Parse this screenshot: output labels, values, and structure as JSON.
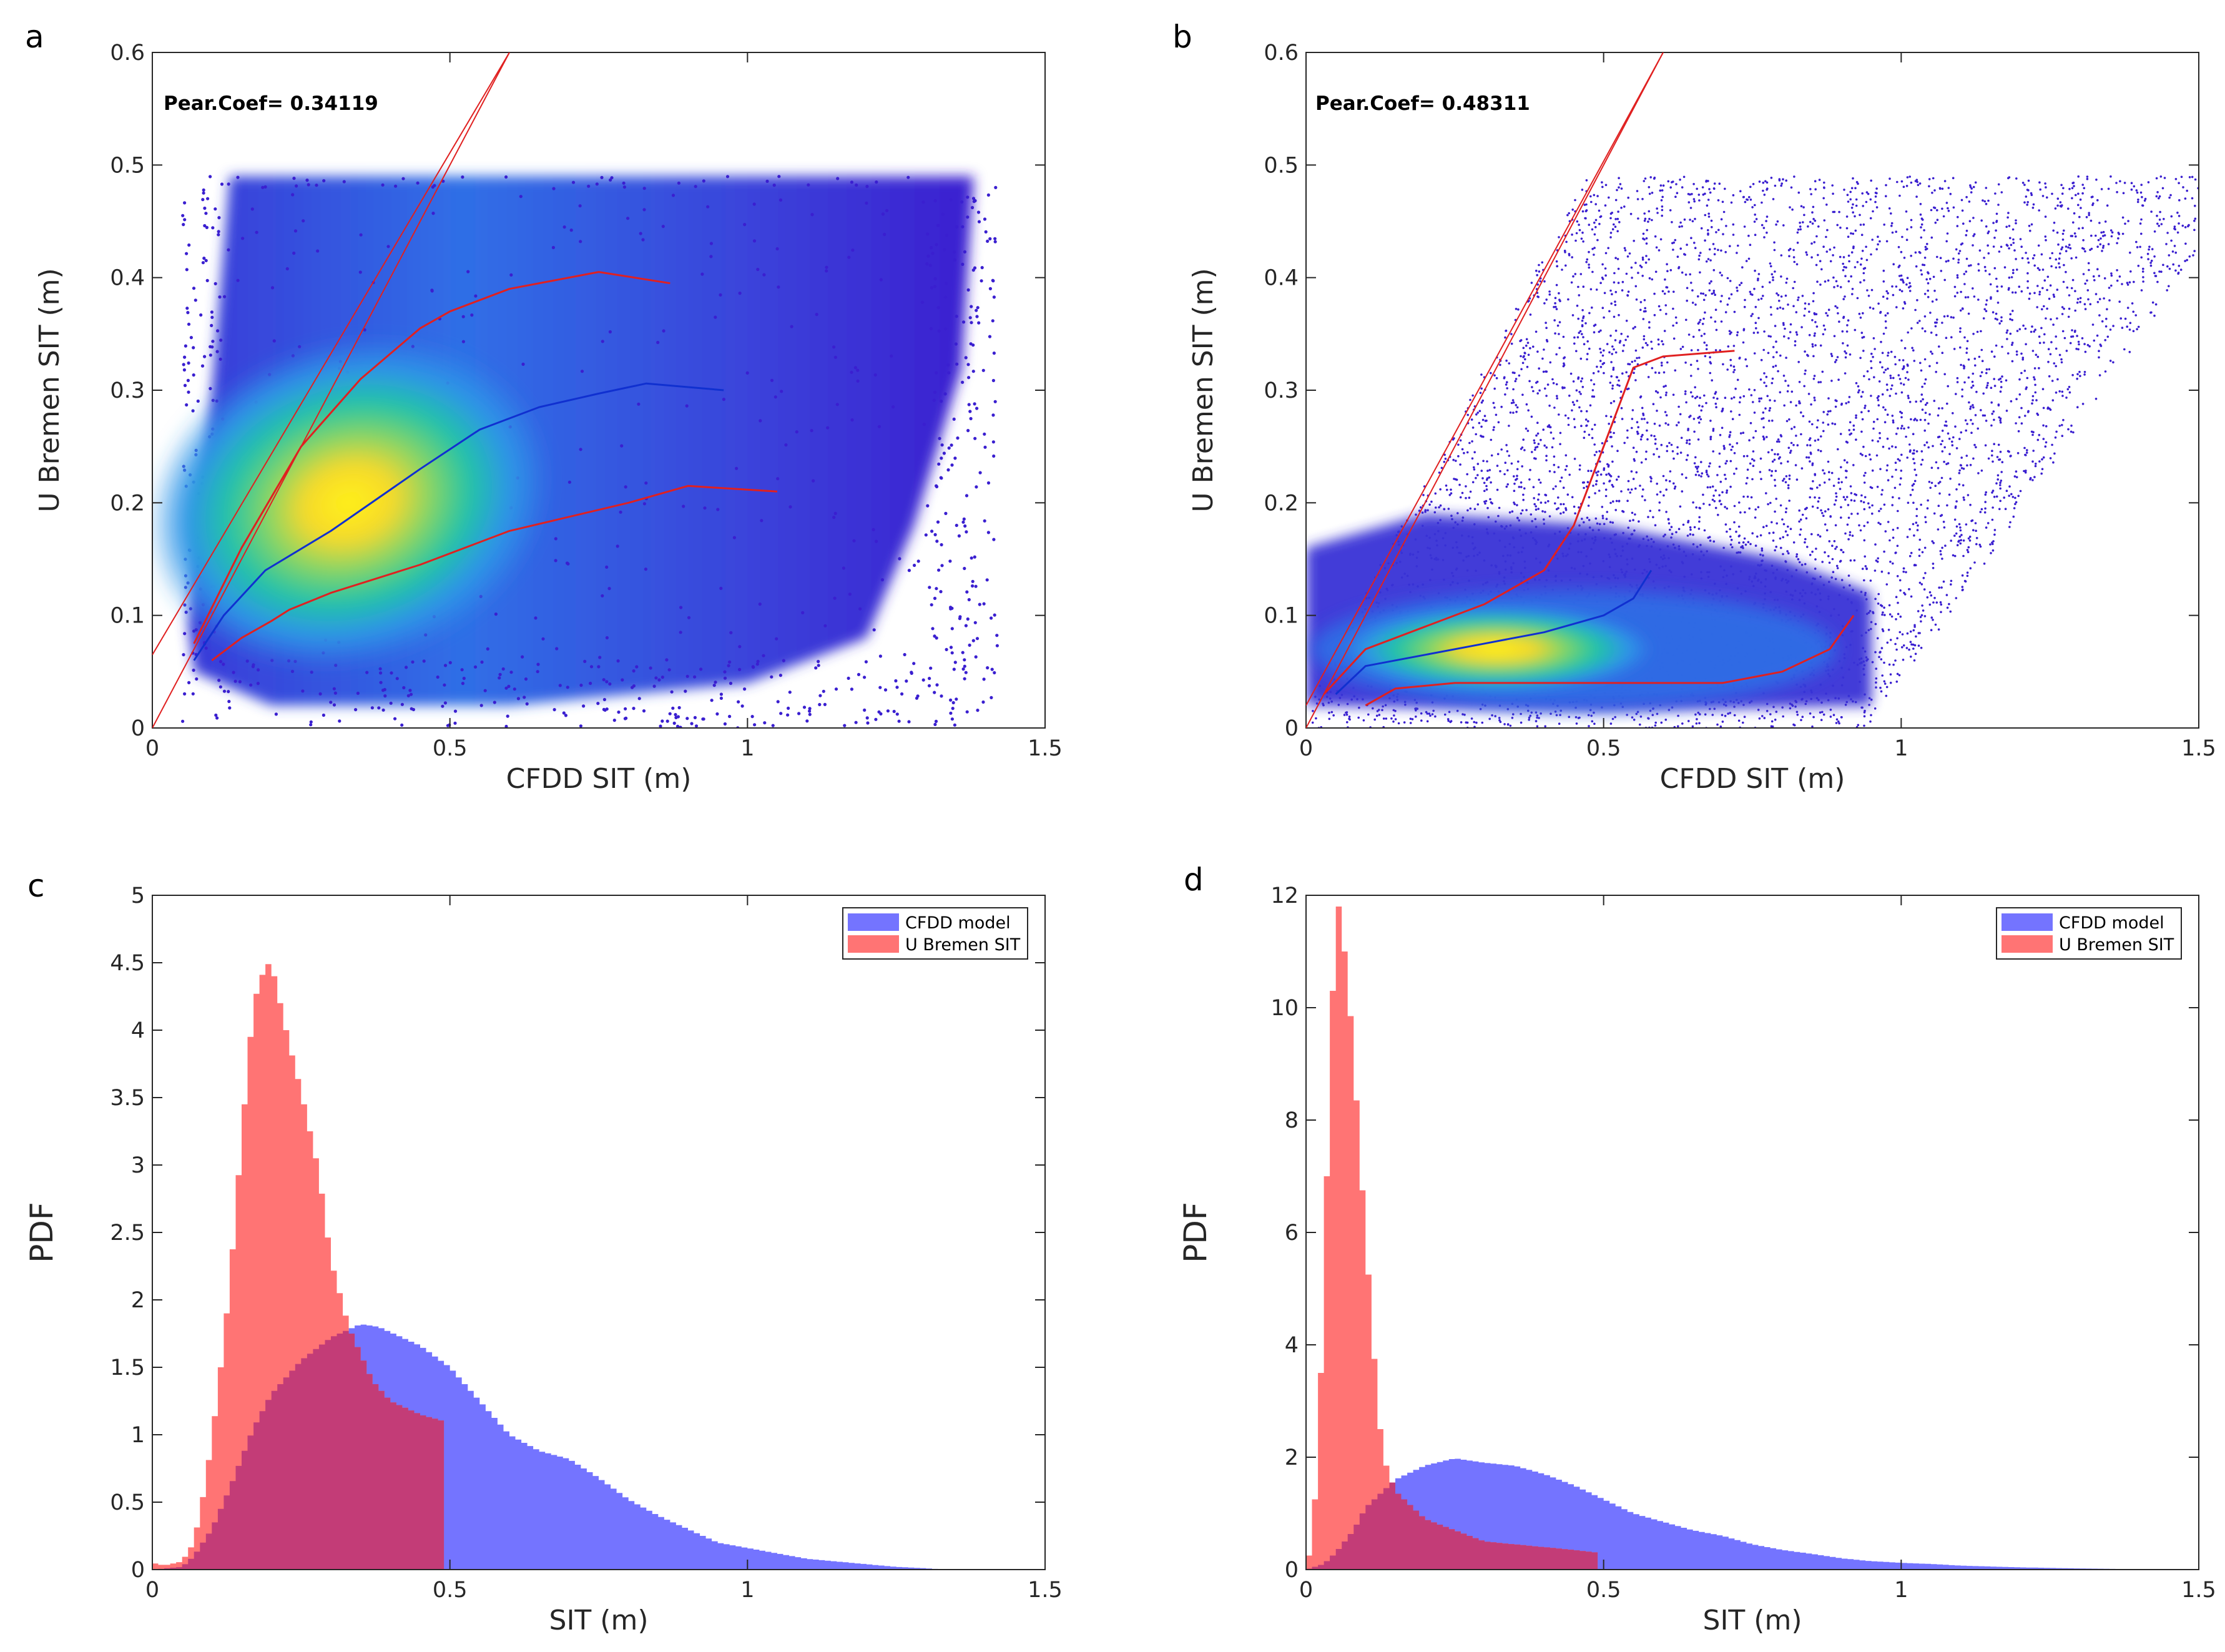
{
  "figure": {
    "colors": {
      "scatter_low": "#3a1fd0",
      "scatter_mid": "#2e95e8",
      "scatter_teal": "#22c3a8",
      "scatter_high": "#f3e51a",
      "fit_line": "#e02020",
      "mean_line": "#1030d0",
      "hist_blue": "#7474ff",
      "hist_red": "#ff7474",
      "overlap": "#c33c77",
      "axis": "#262626"
    }
  },
  "chart_data": [
    {
      "id": "a",
      "panel_label": "a",
      "type": "scatter",
      "title": "",
      "xlabel": "CFDD SIT (m)",
      "ylabel": "U Bremen SIT (m)",
      "xlim": [
        0,
        1.5
      ],
      "ylim": [
        0,
        0.6
      ],
      "xticks": [
        0,
        0.5,
        1,
        1.5
      ],
      "xtick_labels": [
        "0",
        "0.5",
        "1",
        "1.5"
      ],
      "yticks": [
        0,
        0.1,
        0.2,
        0.3,
        0.4,
        0.5,
        0.6
      ],
      "ytick_labels": [
        "0",
        "0.1",
        "0.2",
        "0.3",
        "0.4",
        "0.5",
        "0.6"
      ],
      "annotation": "Pear.Coef= 0.34119",
      "density_peak": {
        "x": 0.33,
        "y": 0.19
      },
      "point_cloud": {
        "x_range": [
          0.05,
          1.4
        ],
        "y_range": [
          0.0,
          0.49
        ],
        "saturation_y": 0.49
      },
      "one_to_one_line": {
        "x": [
          0,
          0.6
        ],
        "y": [
          0,
          0.6
        ]
      },
      "fit_line": {
        "x": [
          0,
          0.6
        ],
        "y": [
          0.065,
          0.6
        ]
      },
      "mean_line": {
        "x": [
          0.07,
          0.12,
          0.19,
          0.3,
          0.45,
          0.55,
          0.65,
          0.75,
          0.83,
          0.96
        ],
        "y": [
          0.06,
          0.1,
          0.14,
          0.175,
          0.23,
          0.265,
          0.285,
          0.297,
          0.306,
          0.3
        ]
      },
      "upper_bound_line": {
        "x": [
          0.07,
          0.15,
          0.25,
          0.35,
          0.45,
          0.5,
          0.6,
          0.75,
          0.87
        ],
        "y": [
          0.075,
          0.16,
          0.25,
          0.31,
          0.355,
          0.37,
          0.39,
          0.405,
          0.395
        ]
      },
      "lower_bound_line": {
        "x": [
          0.1,
          0.15,
          0.2,
          0.23,
          0.3,
          0.45,
          0.6,
          0.8,
          0.9,
          1.05
        ],
        "y": [
          0.06,
          0.08,
          0.095,
          0.105,
          0.12,
          0.145,
          0.175,
          0.2,
          0.215,
          0.21
        ]
      }
    },
    {
      "id": "b",
      "panel_label": "b",
      "type": "scatter",
      "title": "",
      "xlabel": "CFDD SIT (m)",
      "ylabel": "U Bremen SIT (m)",
      "xlim": [
        0,
        1.5
      ],
      "ylim": [
        0,
        0.6
      ],
      "xticks": [
        0,
        0.5,
        1,
        1.5
      ],
      "xtick_labels": [
        "0",
        "0.5",
        "1",
        "1.5"
      ],
      "yticks": [
        0,
        0.1,
        0.2,
        0.3,
        0.4,
        0.5,
        0.6
      ],
      "ytick_labels": [
        "0",
        "0.1",
        "0.2",
        "0.3",
        "0.4",
        "0.5",
        "0.6"
      ],
      "annotation": "Pear.Coef= 0.48311",
      "density_peak": {
        "x": 0.3,
        "y": 0.07
      },
      "point_cloud": {
        "x_range": [
          0.0,
          1.5
        ],
        "y_range": [
          0.0,
          0.49
        ],
        "saturation_y": 0.49
      },
      "one_to_one_line": {
        "x": [
          0,
          0.6
        ],
        "y": [
          0,
          0.6
        ]
      },
      "fit_line": {
        "x": [
          0,
          0.6
        ],
        "y": [
          0.02,
          0.6
        ]
      },
      "mean_line": {
        "x": [
          0.05,
          0.1,
          0.2,
          0.3,
          0.4,
          0.5,
          0.55,
          0.58
        ],
        "y": [
          0.03,
          0.055,
          0.065,
          0.075,
          0.085,
          0.1,
          0.115,
          0.14
        ]
      },
      "upper_bound_line": {
        "x": [
          0.03,
          0.1,
          0.2,
          0.3,
          0.4,
          0.45,
          0.5,
          0.55,
          0.6,
          0.72
        ],
        "y": [
          0.03,
          0.07,
          0.09,
          0.11,
          0.14,
          0.18,
          0.25,
          0.32,
          0.33,
          0.335
        ]
      },
      "lower_bound_line": {
        "x": [
          0.1,
          0.15,
          0.25,
          0.4,
          0.5,
          0.6,
          0.7,
          0.8,
          0.88,
          0.92
        ],
        "y": [
          0.02,
          0.035,
          0.04,
          0.04,
          0.04,
          0.04,
          0.04,
          0.05,
          0.07,
          0.1
        ]
      }
    },
    {
      "id": "c",
      "panel_label": "c",
      "type": "bar",
      "title": "",
      "xlabel": "SIT (m)",
      "ylabel": "PDF",
      "xlim": [
        0,
        1.5
      ],
      "ylim": [
        0,
        5
      ],
      "xticks": [
        0,
        0.5,
        1,
        1.5
      ],
      "xtick_labels": [
        "0",
        "0.5",
        "1",
        "1.5"
      ],
      "yticks": [
        0,
        0.5,
        1,
        1.5,
        2,
        2.5,
        3,
        3.5,
        4,
        4.5,
        5
      ],
      "ytick_labels": [
        "0",
        "0.5",
        "1",
        "1.5",
        "2",
        "2.5",
        "3",
        "3.5",
        "4",
        "4.5",
        "5"
      ],
      "legend": {
        "placement": "top-right",
        "entries": [
          "CFDD model",
          "U Bremen SIT"
        ]
      },
      "series": [
        {
          "name": "CFDD model",
          "bin_width": 0.01,
          "curve": {
            "x": [
              0,
              0.05,
              0.07,
              0.1,
              0.13,
              0.17,
              0.2,
              0.25,
              0.3,
              0.35,
              0.38,
              0.4,
              0.45,
              0.5,
              0.55,
              0.6,
              0.65,
              0.7,
              0.75,
              0.8,
              0.85,
              0.9,
              0.95,
              1.0,
              1.05,
              1.1,
              1.15,
              1.2,
              1.25,
              1.3,
              1.33
            ],
            "y": [
              0,
              0.02,
              0.1,
              0.3,
              0.6,
              1.05,
              1.3,
              1.55,
              1.72,
              1.82,
              1.8,
              1.76,
              1.66,
              1.5,
              1.25,
              1.0,
              0.88,
              0.82,
              0.68,
              0.52,
              0.4,
              0.3,
              0.2,
              0.16,
              0.12,
              0.08,
              0.06,
              0.04,
              0.02,
              0.01,
              0
            ]
          }
        },
        {
          "name": "U Bremen SIT",
          "bin_width": 0.01,
          "curve": {
            "x": [
              0,
              0.02,
              0.05,
              0.07,
              0.09,
              0.11,
              0.13,
              0.15,
              0.17,
              0.19,
              0.2,
              0.21,
              0.23,
              0.25,
              0.28,
              0.3,
              0.33,
              0.35,
              0.37,
              0.4,
              0.45,
              0.49
            ],
            "y": [
              0.05,
              0.03,
              0.06,
              0.2,
              0.65,
              1.3,
              2.1,
              3.2,
              4.2,
              4.48,
              4.5,
              4.3,
              3.9,
              3.55,
              2.95,
              2.3,
              1.8,
              1.6,
              1.4,
              1.25,
              1.15,
              1.1
            ]
          }
        }
      ]
    },
    {
      "id": "d",
      "panel_label": "d",
      "type": "bar",
      "title": "",
      "xlabel": "SIT (m)",
      "ylabel": "PDF",
      "xlim": [
        0,
        1.5
      ],
      "ylim": [
        0,
        12
      ],
      "xticks": [
        0,
        0.5,
        1,
        1.5
      ],
      "xtick_labels": [
        "0",
        "0.5",
        "1",
        "1.5"
      ],
      "yticks": [
        0,
        2,
        4,
        6,
        8,
        10,
        12
      ],
      "ytick_labels": [
        "0",
        "2",
        "4",
        "6",
        "8",
        "10",
        "12"
      ],
      "legend": {
        "placement": "top-right",
        "entries": [
          "CFDD model",
          "U Bremen SIT"
        ]
      },
      "series": [
        {
          "name": "CFDD model",
          "bin_width": 0.01,
          "curve": {
            "x": [
              0,
              0.03,
              0.05,
              0.08,
              0.1,
              0.13,
              0.15,
              0.18,
              0.2,
              0.25,
              0.3,
              0.35,
              0.4,
              0.45,
              0.5,
              0.55,
              0.6,
              0.65,
              0.7,
              0.75,
              0.8,
              0.85,
              0.9,
              0.95,
              1.0,
              1.05,
              1.1,
              1.2,
              1.3,
              1.45
            ],
            "y": [
              0,
              0.1,
              0.3,
              0.7,
              1.1,
              1.4,
              1.6,
              1.75,
              1.85,
              1.98,
              1.9,
              1.85,
              1.7,
              1.5,
              1.25,
              1.0,
              0.85,
              0.7,
              0.6,
              0.45,
              0.35,
              0.28,
              0.2,
              0.15,
              0.12,
              0.1,
              0.07,
              0.04,
              0.02,
              0
            ]
          }
        },
        {
          "name": "U Bremen SIT",
          "bin_width": 0.01,
          "curve": {
            "x": [
              0,
              0.01,
              0.02,
              0.03,
              0.04,
              0.05,
              0.055,
              0.06,
              0.07,
              0.08,
              0.09,
              0.1,
              0.11,
              0.12,
              0.13,
              0.15,
              0.17,
              0.2,
              0.25,
              0.3,
              0.35,
              0.4,
              0.45,
              0.49
            ],
            "y": [
              0,
              0.5,
              2.0,
              5.0,
              9.0,
              11.6,
              11.8,
              11.5,
              10.5,
              9.2,
              7.5,
              6.0,
              4.5,
              3.0,
              2.0,
              1.4,
              1.2,
              0.9,
              0.7,
              0.5,
              0.45,
              0.4,
              0.35,
              0.3
            ]
          }
        }
      ]
    }
  ]
}
